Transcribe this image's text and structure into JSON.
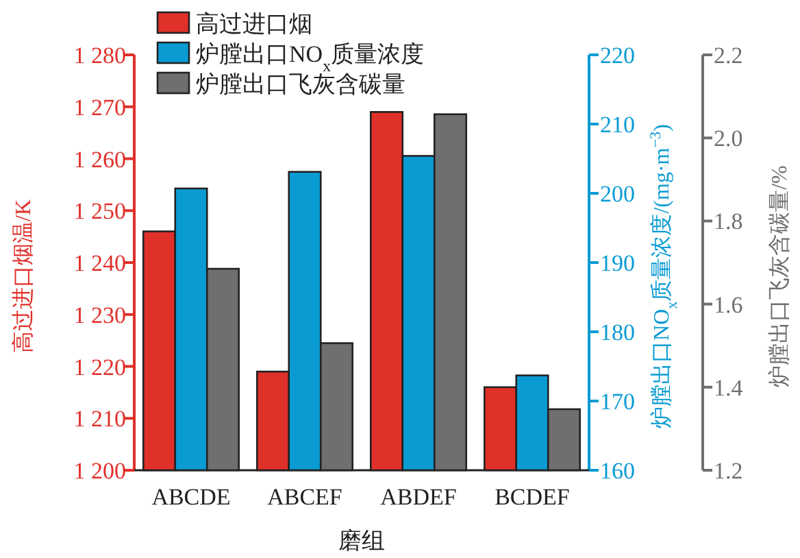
{
  "chart_data": {
    "type": "bar",
    "categories": [
      "ABCDE",
      "ABCEF",
      "ABDEF",
      "BCDEF"
    ],
    "series": [
      {
        "name": "高过进口烟",
        "color": "#e0302a",
        "values": [
          1246,
          1219,
          1269,
          1216
        ]
      },
      {
        "name": "炉膛出口NO$_{x}$质量浓度",
        "color": "#0a9bd3",
        "axis": "y2",
        "values": [
          200.7,
          203.1,
          205.4,
          173.7
        ]
      },
      {
        "name": "炉膛出口飞灰含碳量",
        "color": "#6f6f6f",
        "axis": "y3",
        "values": [
          1.685,
          1.506,
          2.057,
          1.347
        ]
      }
    ],
    "xlabel": "磨组",
    "ylabel": "高过进口烟温/K",
    "y2label": "炉膛出口NO$_{x}$质量浓度/(mg·m$^{−3}$)",
    "y3label": "炉膛出口飞灰含碳量/%",
    "ylim": [
      1200,
      1280
    ],
    "yticks": [
      {
        "value": 1200,
        "label": "1 200"
      },
      {
        "value": 1210,
        "label": "1 210"
      },
      {
        "value": 1220,
        "label": "1 220"
      },
      {
        "value": 1230,
        "label": "1 230"
      },
      {
        "value": 1240,
        "label": "1 240"
      },
      {
        "value": 1250,
        "label": "1 250"
      },
      {
        "value": 1260,
        "label": "1 260"
      },
      {
        "value": 1270,
        "label": "1 270"
      },
      {
        "value": 1280,
        "label": "1 280"
      }
    ],
    "y2lim": [
      160,
      220
    ],
    "y2ticks": [
      160,
      170,
      180,
      190,
      200,
      210,
      220
    ],
    "y3lim": [
      1.2,
      2.2
    ],
    "y3ticks": [
      {
        "value": 1.2,
        "label": "1.2"
      },
      {
        "value": 1.4,
        "label": "1.4"
      },
      {
        "value": 1.6,
        "label": "1.6"
      },
      {
        "value": 1.8,
        "label": "1.8"
      },
      {
        "value": 2.0,
        "label": "2.0"
      },
      {
        "value": 2.2,
        "label": "2.2"
      }
    ],
    "legend": "top left",
    "grid": false
  }
}
